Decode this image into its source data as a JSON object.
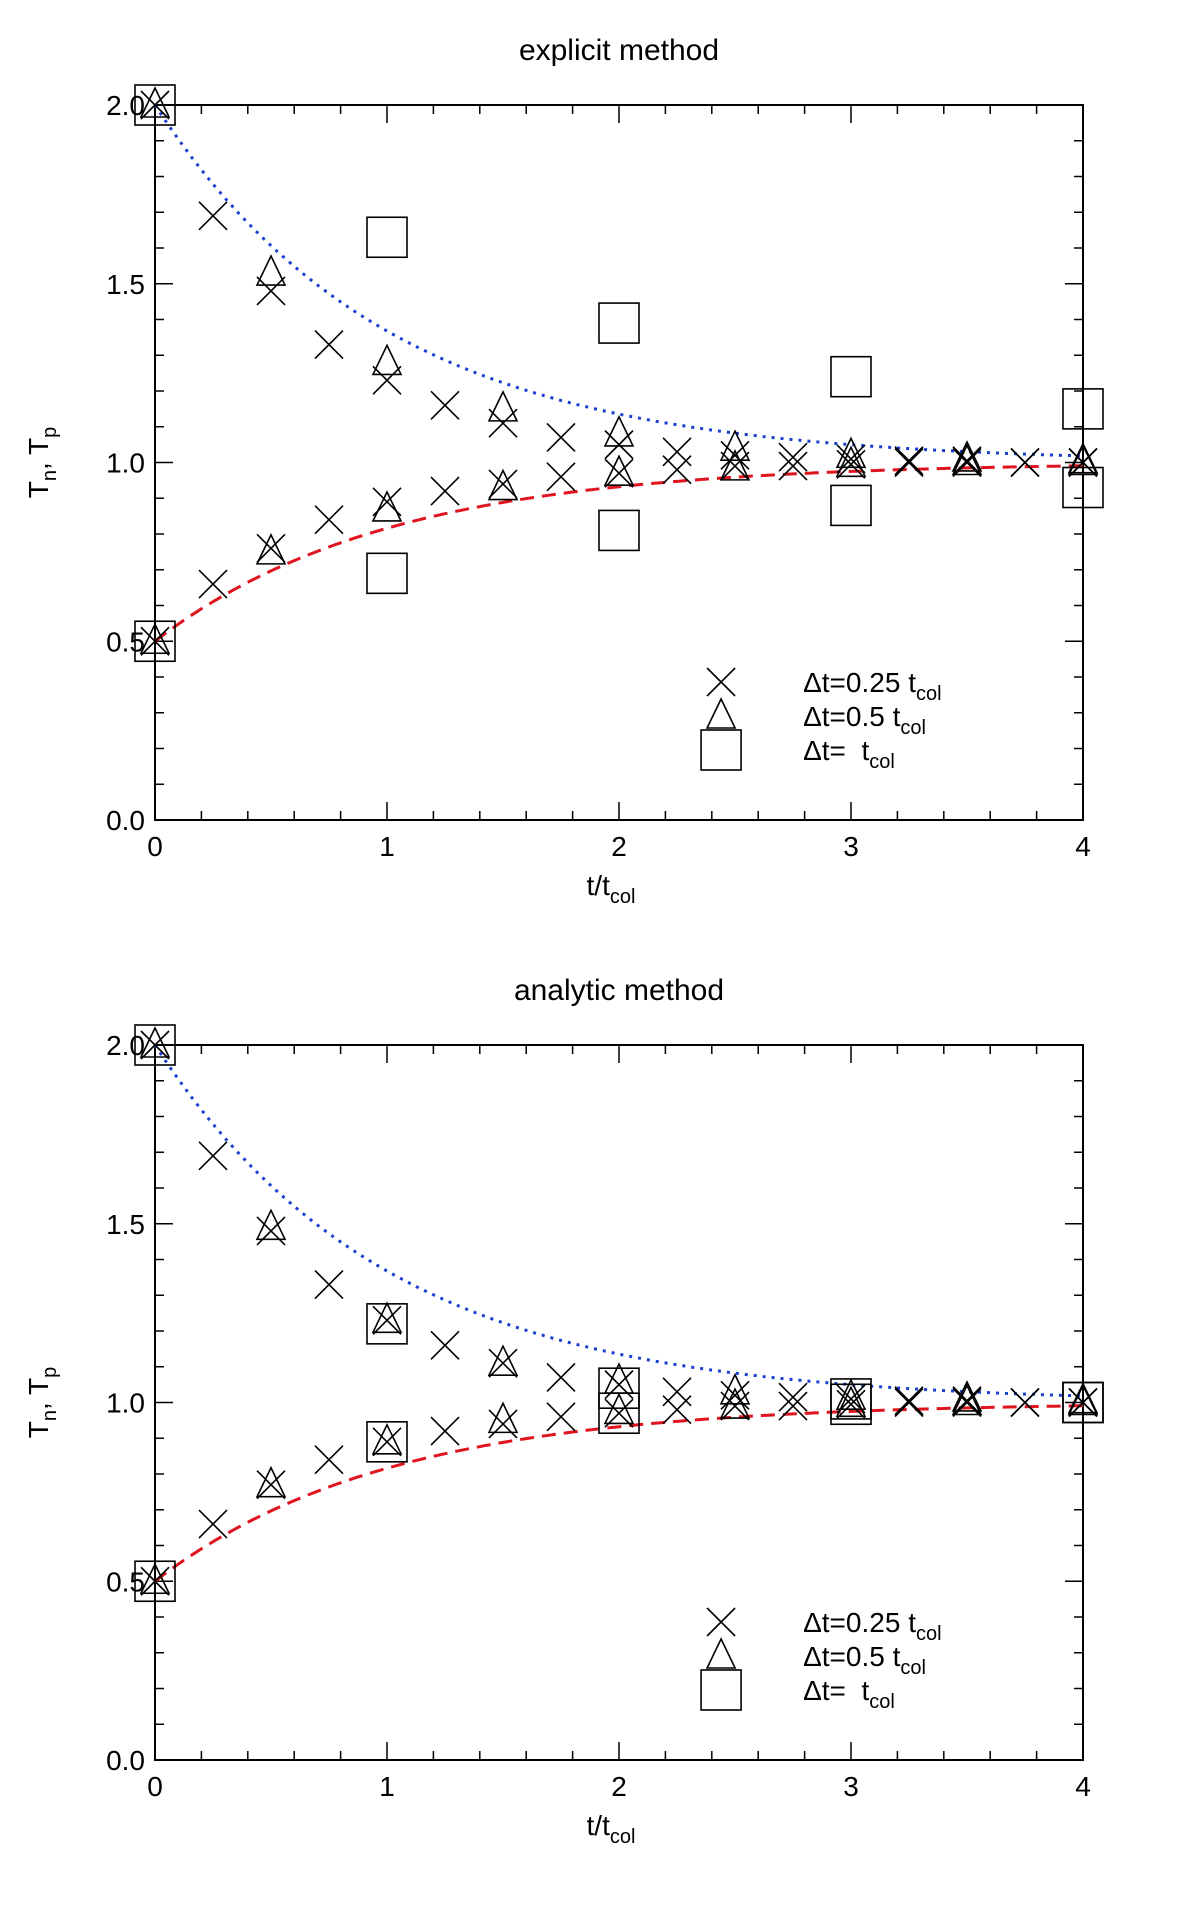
{
  "chart_data": [
    {
      "type": "scatter",
      "title": "explicit method",
      "xlabel": "t/t",
      "xlabel_sub": "col",
      "ylabel_t1": "T",
      "ylabel_sub1": "n",
      "ylabel_sep": ", ",
      "ylabel_t2": "T",
      "ylabel_sub2": "p",
      "xlim": [
        0,
        4
      ],
      "ylim": [
        0,
        2
      ],
      "xticks": [
        {
          "v": 0,
          "label": "0"
        },
        {
          "v": 1,
          "label": "1"
        },
        {
          "v": 2,
          "label": "2"
        },
        {
          "v": 3,
          "label": "3"
        },
        {
          "v": 4,
          "label": "4"
        }
      ],
      "yticks": [
        {
          "v": 0,
          "label": "0.0"
        },
        {
          "v": 0.5,
          "label": "0.5"
        },
        {
          "v": 1.0,
          "label": "1.0"
        },
        {
          "v": 1.5,
          "label": "1.5"
        },
        {
          "v": 2.0,
          "label": "2.0"
        }
      ],
      "legend_position": "bottom-right",
      "legend": [
        {
          "marker": "x",
          "prefix": "Δt=0.25 t",
          "sub": "col"
        },
        {
          "marker": "triangle",
          "prefix": "Δt=0.5 t",
          "sub": "col"
        },
        {
          "marker": "square",
          "prefix": "Δt=  t",
          "sub": "col"
        }
      ],
      "curves": [
        {
          "name": "T_n analytic",
          "style": "dotted",
          "color": "#1a3fd1",
          "start": 2.0
        },
        {
          "name": "T_p analytic",
          "style": "dashed",
          "color": "#e0141e",
          "start": 0.5
        }
      ],
      "series": [
        {
          "name": "Δt=0.25 t_col",
          "marker": "x",
          "x": [
            0,
            0.25,
            0.5,
            0.75,
            1.0,
            1.25,
            1.5,
            1.75,
            2.0,
            2.25,
            2.5,
            2.75,
            3.0,
            3.25,
            3.5,
            3.75,
            4.0,
            0,
            0.25,
            0.5,
            0.75,
            1.0,
            1.25,
            1.5,
            1.75,
            2.0,
            2.25,
            2.5,
            2.75,
            3.0,
            3.25,
            3.5,
            3.75,
            4.0
          ],
          "y": [
            2.0,
            1.69,
            1.48,
            1.33,
            1.23,
            1.16,
            1.11,
            1.07,
            1.05,
            1.03,
            1.02,
            1.015,
            1.01,
            1.005,
            1.005,
            1.0,
            1.0,
            0.5,
            0.66,
            0.76,
            0.84,
            0.89,
            0.92,
            0.94,
            0.96,
            0.97,
            0.98,
            0.99,
            0.99,
            0.995,
            1.0,
            1.0,
            1.0,
            1.0
          ]
        },
        {
          "name": "Δt=0.5 t_col",
          "marker": "triangle",
          "x": [
            0,
            0.5,
            1.0,
            1.5,
            2.0,
            2.5,
            3.0,
            3.5,
            4.0,
            0,
            0.5,
            1.0,
            1.5,
            2.0,
            2.5,
            3.0,
            3.5,
            4.0
          ],
          "y": [
            2.0,
            1.53,
            1.28,
            1.15,
            1.08,
            1.04,
            1.02,
            1.01,
            1.005,
            0.5,
            0.75,
            0.87,
            0.93,
            0.97,
            0.985,
            0.995,
            1.0,
            1.0
          ]
        },
        {
          "name": "Δt= t_col",
          "marker": "square",
          "x": [
            0,
            1.0,
            2.0,
            3.0,
            4.0,
            0,
            1.0,
            2.0,
            3.0,
            4.0
          ],
          "y": [
            2.0,
            1.63,
            1.39,
            1.24,
            1.15,
            0.5,
            0.69,
            0.81,
            0.88,
            0.93
          ]
        }
      ]
    },
    {
      "type": "scatter",
      "title": "analytic method",
      "xlabel": "t/t",
      "xlabel_sub": "col",
      "ylabel_t1": "T",
      "ylabel_sub1": "n",
      "ylabel_sep": ", ",
      "ylabel_t2": "T",
      "ylabel_sub2": "p",
      "xlim": [
        0,
        4
      ],
      "ylim": [
        0,
        2
      ],
      "xticks": [
        {
          "v": 0,
          "label": "0"
        },
        {
          "v": 1,
          "label": "1"
        },
        {
          "v": 2,
          "label": "2"
        },
        {
          "v": 3,
          "label": "3"
        },
        {
          "v": 4,
          "label": "4"
        }
      ],
      "yticks": [
        {
          "v": 0,
          "label": "0.0"
        },
        {
          "v": 0.5,
          "label": "0.5"
        },
        {
          "v": 1.0,
          "label": "1.0"
        },
        {
          "v": 1.5,
          "label": "1.5"
        },
        {
          "v": 2.0,
          "label": "2.0"
        }
      ],
      "legend_position": "bottom-right",
      "legend": [
        {
          "marker": "x",
          "prefix": "Δt=0.25 t",
          "sub": "col"
        },
        {
          "marker": "triangle",
          "prefix": "Δt=0.5 t",
          "sub": "col"
        },
        {
          "marker": "square",
          "prefix": "Δt=  t",
          "sub": "col"
        }
      ],
      "curves": [
        {
          "name": "T_n analytic",
          "style": "dotted",
          "color": "#1a3fd1",
          "start": 2.0
        },
        {
          "name": "T_p analytic",
          "style": "dashed",
          "color": "#e0141e",
          "start": 0.5
        }
      ],
      "series": [
        {
          "name": "Δt=0.25 t_col",
          "marker": "x",
          "x": [
            0,
            0.25,
            0.5,
            0.75,
            1.0,
            1.25,
            1.5,
            1.75,
            2.0,
            2.25,
            2.5,
            2.75,
            3.0,
            3.25,
            3.5,
            3.75,
            4.0,
            0,
            0.25,
            0.5,
            0.75,
            1.0,
            1.25,
            1.5,
            1.75,
            2.0,
            2.25,
            2.5,
            2.75,
            3.0,
            3.25,
            3.5,
            3.75,
            4.0
          ],
          "y": [
            2.0,
            1.69,
            1.48,
            1.33,
            1.23,
            1.16,
            1.11,
            1.07,
            1.05,
            1.03,
            1.02,
            1.015,
            1.01,
            1.005,
            1.005,
            1.0,
            1.0,
            0.5,
            0.66,
            0.77,
            0.84,
            0.89,
            0.92,
            0.94,
            0.96,
            0.97,
            0.98,
            0.99,
            0.99,
            0.995,
            1.0,
            1.0,
            1.0,
            1.0
          ]
        },
        {
          "name": "Δt=0.5 t_col",
          "marker": "triangle",
          "x": [
            0,
            0.5,
            1.0,
            1.5,
            2.0,
            2.5,
            3.0,
            3.5,
            4.0,
            0,
            0.5,
            1.0,
            1.5,
            2.0,
            2.5,
            3.0,
            3.5,
            4.0
          ],
          "y": [
            2.0,
            1.49,
            1.23,
            1.11,
            1.06,
            1.03,
            1.015,
            1.01,
            1.005,
            0.5,
            0.77,
            0.89,
            0.95,
            0.975,
            0.99,
            0.995,
            1.0,
            1.0
          ]
        },
        {
          "name": "Δt= t_col",
          "marker": "square",
          "x": [
            0,
            1.0,
            2.0,
            3.0,
            4.0,
            0,
            1.0,
            2.0,
            3.0,
            4.0
          ],
          "y": [
            2.0,
            1.22,
            1.04,
            1.01,
            1.0,
            0.5,
            0.89,
            0.97,
            0.995,
            1.0
          ]
        }
      ]
    }
  ]
}
